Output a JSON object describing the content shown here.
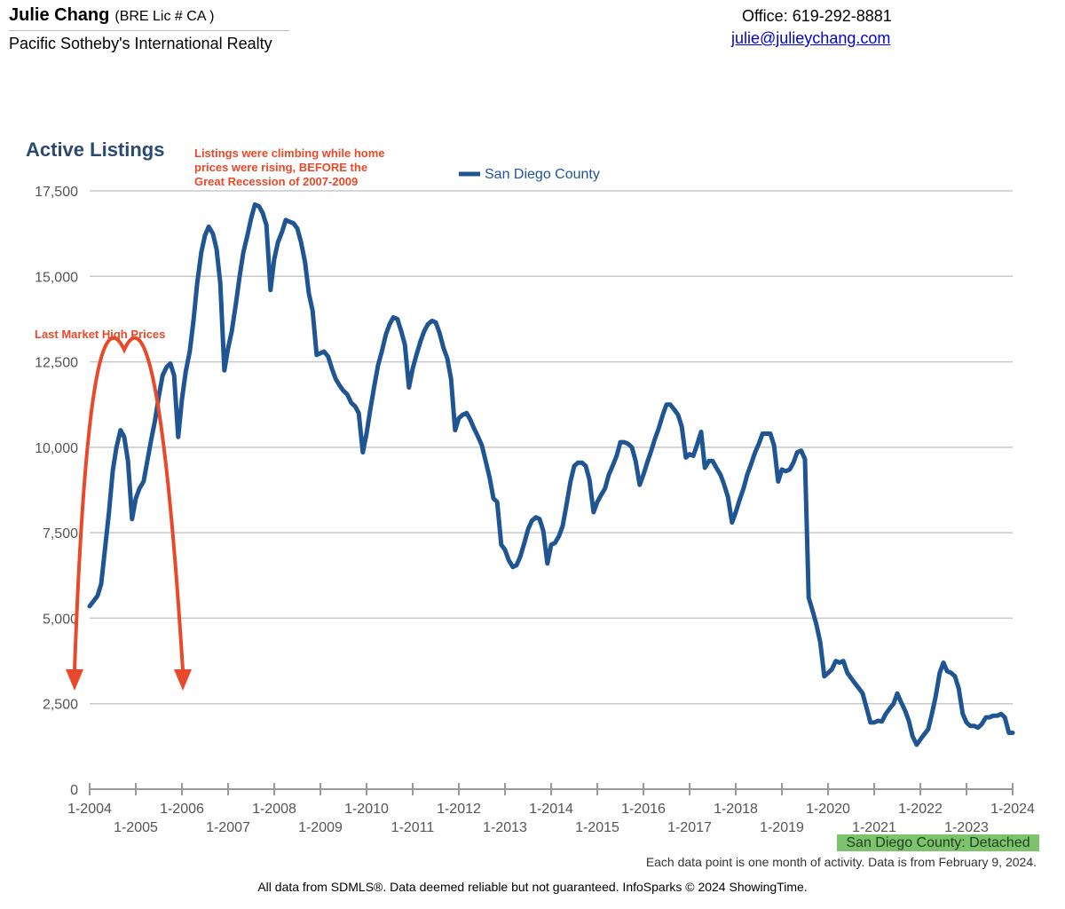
{
  "header": {
    "agent_name": "Julie Chang",
    "license": "(BRE Lic # CA )",
    "brokerage": "Pacific Sotheby's International Realty",
    "office": "Office: 619-292-8881",
    "email": "julie@julieychang.com"
  },
  "colors": {
    "series": "#1f5593",
    "annotation": "#e8492a",
    "title": "#2b4a72",
    "grid": "#c8c8c8",
    "badge": "#7dc36b"
  },
  "footer": {
    "series_badge": "San Diego County: Detached",
    "note": "Each data point is one month of activity. Data is from February 9, 2024.",
    "source": "All data from SDMLS®. Data deemed reliable but not guaranteed. InfoSparks © 2024 ShowingTime."
  },
  "chart_data": {
    "type": "line",
    "title": "Active Listings",
    "legend": "San Diego County",
    "legend_position": "top-center",
    "xlabel": "",
    "ylabel": "",
    "ylim": [
      0,
      17500
    ],
    "yticks": [
      0,
      2500,
      5000,
      7500,
      10000,
      12500,
      15000,
      17500
    ],
    "ytick_labels": [
      "0",
      "2,500",
      "5,000",
      "7,500",
      "10,000",
      "12,500",
      "15,000",
      "17,500"
    ],
    "xlim": [
      2004.0,
      2024.0
    ],
    "xticks": [
      {
        "label": "1-2004",
        "x": 2004,
        "row": 1
      },
      {
        "label": "1-2005",
        "x": 2005,
        "row": 2
      },
      {
        "label": "1-2006",
        "x": 2006,
        "row": 1
      },
      {
        "label": "1-2007",
        "x": 2007,
        "row": 2
      },
      {
        "label": "1-2008",
        "x": 2008,
        "row": 1
      },
      {
        "label": "1-2009",
        "x": 2009,
        "row": 2
      },
      {
        "label": "1-2010",
        "x": 2010,
        "row": 1
      },
      {
        "label": "1-2011",
        "x": 2011,
        "row": 2
      },
      {
        "label": "1-2012",
        "x": 2012,
        "row": 1
      },
      {
        "label": "1-2013",
        "x": 2013,
        "row": 2
      },
      {
        "label": "1-2014",
        "x": 2014,
        "row": 1
      },
      {
        "label": "1-2015",
        "x": 2015,
        "row": 2
      },
      {
        "label": "1-2016",
        "x": 2016,
        "row": 1
      },
      {
        "label": "1-2017",
        "x": 2017,
        "row": 2
      },
      {
        "label": "1-2018",
        "x": 2018,
        "row": 1
      },
      {
        "label": "1-2019",
        "x": 2019,
        "row": 2
      },
      {
        "label": "1-2020",
        "x": 2020,
        "row": 1
      },
      {
        "label": "1-2021",
        "x": 2021,
        "row": 2
      },
      {
        "label": "1-2022",
        "x": 2022,
        "row": 1
      },
      {
        "label": "1-2023",
        "x": 2023,
        "row": 2
      },
      {
        "label": "1-2024",
        "x": 2024,
        "row": 1
      }
    ],
    "series": [
      {
        "name": "San Diego County",
        "points": [
          [
            2004.0,
            5350
          ],
          [
            2004.17,
            5650
          ],
          [
            2004.25,
            6000
          ],
          [
            2004.33,
            7000
          ],
          [
            2004.42,
            8100
          ],
          [
            2004.5,
            9300
          ],
          [
            2004.58,
            10000
          ],
          [
            2004.67,
            10500
          ],
          [
            2004.75,
            10300
          ],
          [
            2004.83,
            9600
          ],
          [
            2004.92,
            7900
          ],
          [
            2005.0,
            8500
          ],
          [
            2005.08,
            8800
          ],
          [
            2005.17,
            9000
          ],
          [
            2005.25,
            9600
          ],
          [
            2005.33,
            10200
          ],
          [
            2005.42,
            10800
          ],
          [
            2005.5,
            11500
          ],
          [
            2005.58,
            12100
          ],
          [
            2005.67,
            12350
          ],
          [
            2005.75,
            12450
          ],
          [
            2005.83,
            12100
          ],
          [
            2005.92,
            10300
          ],
          [
            2006.0,
            11400
          ],
          [
            2006.08,
            12200
          ],
          [
            2006.17,
            12800
          ],
          [
            2006.25,
            13700
          ],
          [
            2006.33,
            14800
          ],
          [
            2006.42,
            15700
          ],
          [
            2006.5,
            16200
          ],
          [
            2006.58,
            16450
          ],
          [
            2006.67,
            16250
          ],
          [
            2006.75,
            15800
          ],
          [
            2006.83,
            14800
          ],
          [
            2006.92,
            12250
          ],
          [
            2007.0,
            12900
          ],
          [
            2007.08,
            13400
          ],
          [
            2007.17,
            14200
          ],
          [
            2007.25,
            15000
          ],
          [
            2007.33,
            15700
          ],
          [
            2007.42,
            16200
          ],
          [
            2007.5,
            16700
          ],
          [
            2007.58,
            17100
          ],
          [
            2007.67,
            17050
          ],
          [
            2007.75,
            16850
          ],
          [
            2007.83,
            16500
          ],
          [
            2007.92,
            14600
          ],
          [
            2008.0,
            15500
          ],
          [
            2008.08,
            16000
          ],
          [
            2008.17,
            16300
          ],
          [
            2008.25,
            16650
          ],
          [
            2008.33,
            16600
          ],
          [
            2008.42,
            16550
          ],
          [
            2008.5,
            16400
          ],
          [
            2008.58,
            16000
          ],
          [
            2008.67,
            15400
          ],
          [
            2008.75,
            14500
          ],
          [
            2008.83,
            14000
          ],
          [
            2008.92,
            12700
          ],
          [
            2009.0,
            12750
          ],
          [
            2009.08,
            12800
          ],
          [
            2009.17,
            12650
          ],
          [
            2009.25,
            12300
          ],
          [
            2009.33,
            12000
          ],
          [
            2009.42,
            11800
          ],
          [
            2009.5,
            11650
          ],
          [
            2009.58,
            11550
          ],
          [
            2009.67,
            11300
          ],
          [
            2009.75,
            11200
          ],
          [
            2009.83,
            11000
          ],
          [
            2009.92,
            9850
          ],
          [
            2010.0,
            10400
          ],
          [
            2010.08,
            11100
          ],
          [
            2010.17,
            11800
          ],
          [
            2010.25,
            12400
          ],
          [
            2010.33,
            12800
          ],
          [
            2010.42,
            13300
          ],
          [
            2010.5,
            13600
          ],
          [
            2010.58,
            13800
          ],
          [
            2010.67,
            13750
          ],
          [
            2010.75,
            13400
          ],
          [
            2010.83,
            13000
          ],
          [
            2010.92,
            11750
          ],
          [
            2011.0,
            12300
          ],
          [
            2011.08,
            12700
          ],
          [
            2011.17,
            13100
          ],
          [
            2011.25,
            13400
          ],
          [
            2011.33,
            13600
          ],
          [
            2011.42,
            13700
          ],
          [
            2011.5,
            13650
          ],
          [
            2011.58,
            13350
          ],
          [
            2011.67,
            12900
          ],
          [
            2011.75,
            12600
          ],
          [
            2011.83,
            12000
          ],
          [
            2011.92,
            10500
          ],
          [
            2012.0,
            10850
          ],
          [
            2012.08,
            10950
          ],
          [
            2012.17,
            11000
          ],
          [
            2012.25,
            10800
          ],
          [
            2012.33,
            10550
          ],
          [
            2012.42,
            10300
          ],
          [
            2012.5,
            10050
          ],
          [
            2012.58,
            9600
          ],
          [
            2012.67,
            9100
          ],
          [
            2012.75,
            8500
          ],
          [
            2012.83,
            8400
          ],
          [
            2012.92,
            7150
          ],
          [
            2013.0,
            7000
          ],
          [
            2013.08,
            6700
          ],
          [
            2013.17,
            6500
          ],
          [
            2013.25,
            6550
          ],
          [
            2013.33,
            6800
          ],
          [
            2013.42,
            7200
          ],
          [
            2013.5,
            7600
          ],
          [
            2013.58,
            7850
          ],
          [
            2013.67,
            7950
          ],
          [
            2013.75,
            7900
          ],
          [
            2013.83,
            7550
          ],
          [
            2013.92,
            6600
          ],
          [
            2014.0,
            7150
          ],
          [
            2014.08,
            7200
          ],
          [
            2014.17,
            7400
          ],
          [
            2014.25,
            7700
          ],
          [
            2014.33,
            8300
          ],
          [
            2014.42,
            9000
          ],
          [
            2014.5,
            9450
          ],
          [
            2014.58,
            9550
          ],
          [
            2014.67,
            9550
          ],
          [
            2014.75,
            9450
          ],
          [
            2014.83,
            9050
          ],
          [
            2014.92,
            8100
          ],
          [
            2015.0,
            8400
          ],
          [
            2015.08,
            8600
          ],
          [
            2015.17,
            8800
          ],
          [
            2015.25,
            9200
          ],
          [
            2015.33,
            9450
          ],
          [
            2015.42,
            9750
          ],
          [
            2015.5,
            10150
          ],
          [
            2015.58,
            10150
          ],
          [
            2015.67,
            10100
          ],
          [
            2015.75,
            10000
          ],
          [
            2015.83,
            9600
          ],
          [
            2015.92,
            8900
          ],
          [
            2016.0,
            9200
          ],
          [
            2016.08,
            9550
          ],
          [
            2016.17,
            9900
          ],
          [
            2016.25,
            10250
          ],
          [
            2016.33,
            10550
          ],
          [
            2016.42,
            10950
          ],
          [
            2016.5,
            11250
          ],
          [
            2016.58,
            11250
          ],
          [
            2016.67,
            11100
          ],
          [
            2016.75,
            10950
          ],
          [
            2016.83,
            10600
          ],
          [
            2016.92,
            9700
          ],
          [
            2017.0,
            9800
          ],
          [
            2017.08,
            9750
          ],
          [
            2017.17,
            10100
          ],
          [
            2017.25,
            10450
          ],
          [
            2017.33,
            9400
          ],
          [
            2017.42,
            9600
          ],
          [
            2017.5,
            9600
          ],
          [
            2017.58,
            9400
          ],
          [
            2017.67,
            9200
          ],
          [
            2017.75,
            8900
          ],
          [
            2017.83,
            8550
          ],
          [
            2017.92,
            7800
          ],
          [
            2018.0,
            8100
          ],
          [
            2018.08,
            8450
          ],
          [
            2018.17,
            8800
          ],
          [
            2018.25,
            9200
          ],
          [
            2018.33,
            9500
          ],
          [
            2018.42,
            9850
          ],
          [
            2018.5,
            10100
          ],
          [
            2018.58,
            10400
          ],
          [
            2018.67,
            10400
          ],
          [
            2018.75,
            10400
          ],
          [
            2018.83,
            10050
          ],
          [
            2018.92,
            9000
          ],
          [
            2019.0,
            9350
          ],
          [
            2019.08,
            9300
          ],
          [
            2019.17,
            9350
          ],
          [
            2019.25,
            9550
          ],
          [
            2019.33,
            9850
          ],
          [
            2019.42,
            9900
          ],
          [
            2019.5,
            9650
          ],
          [
            2019.58,
            5600
          ],
          [
            2019.67,
            5200
          ],
          [
            2019.75,
            4800
          ],
          [
            2019.83,
            4300
          ],
          [
            2019.92,
            3300
          ],
          [
            2020.0,
            3400
          ],
          [
            2020.08,
            3500
          ],
          [
            2020.17,
            3750
          ],
          [
            2020.25,
            3700
          ],
          [
            2020.33,
            3750
          ],
          [
            2020.42,
            3400
          ],
          [
            2020.5,
            3250
          ],
          [
            2020.58,
            3100
          ],
          [
            2020.67,
            2950
          ],
          [
            2020.75,
            2800
          ],
          [
            2020.83,
            2400
          ],
          [
            2020.92,
            1950
          ],
          [
            2021.0,
            1950
          ],
          [
            2021.08,
            2000
          ],
          [
            2021.17,
            1980
          ],
          [
            2021.25,
            2200
          ],
          [
            2021.33,
            2350
          ],
          [
            2021.42,
            2500
          ],
          [
            2021.5,
            2800
          ],
          [
            2021.58,
            2550
          ],
          [
            2021.67,
            2300
          ],
          [
            2021.75,
            2000
          ],
          [
            2021.83,
            1550
          ],
          [
            2021.92,
            1300
          ],
          [
            2022.0,
            1450
          ],
          [
            2022.08,
            1600
          ],
          [
            2022.17,
            1750
          ],
          [
            2022.25,
            2200
          ],
          [
            2022.33,
            2700
          ],
          [
            2022.42,
            3400
          ],
          [
            2022.5,
            3700
          ],
          [
            2022.58,
            3450
          ],
          [
            2022.67,
            3400
          ],
          [
            2022.75,
            3300
          ],
          [
            2022.83,
            2950
          ],
          [
            2022.92,
            2200
          ],
          [
            2023.0,
            1950
          ],
          [
            2023.08,
            1850
          ],
          [
            2023.17,
            1850
          ],
          [
            2023.25,
            1800
          ],
          [
            2023.33,
            1900
          ],
          [
            2023.42,
            2100
          ],
          [
            2023.5,
            2100
          ],
          [
            2023.58,
            2150
          ],
          [
            2023.67,
            2150
          ],
          [
            2023.75,
            2200
          ],
          [
            2023.83,
            2100
          ],
          [
            2023.92,
            1650
          ],
          [
            2024.0,
            1650
          ]
        ]
      }
    ],
    "annotations": [
      {
        "id": "annotation-recession",
        "lines": [
          "Listings were climbing while home",
          "prices were rising, BEFORE the",
          "Great Recession of 2007-2009"
        ]
      },
      {
        "id": "annotation-last-high",
        "text": "Last Market High Prices"
      }
    ]
  }
}
